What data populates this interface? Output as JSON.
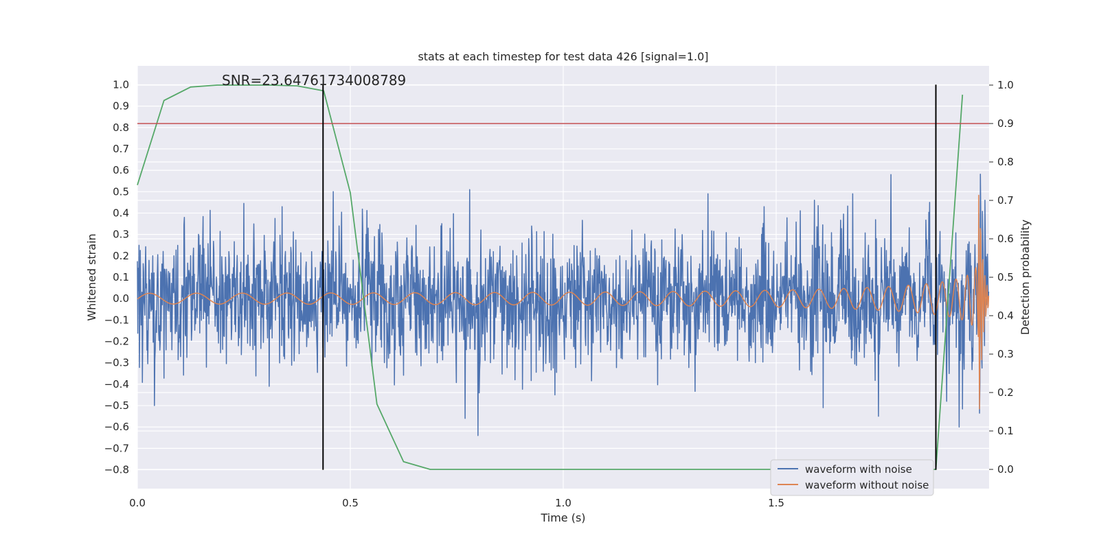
{
  "chart_data": {
    "type": "line",
    "title": "stats at each timestep for test data 426 [signal=1.0]",
    "annotation": "SNR=23.64761734008789",
    "xlabel": "Time (s)",
    "ylabel": "Whitened strain",
    "y2label": "Detection probability",
    "xlim": [
      0.0,
      2.0
    ],
    "ylim": [
      -0.888,
      1.088
    ],
    "y2lim": [
      -0.05,
      1.05
    ],
    "x_ticks": [
      0.0,
      0.5,
      1.0,
      1.5
    ],
    "x_tick_labels": [
      "0.0",
      "0.5",
      "1.0",
      "1.5"
    ],
    "y_ticks": [
      -0.8,
      -0.7,
      -0.6,
      -0.5,
      -0.4,
      -0.3,
      -0.2,
      -0.1,
      0.0,
      0.1,
      0.2,
      0.3,
      0.4,
      0.5,
      0.6,
      0.7,
      0.8,
      0.9,
      1.0
    ],
    "y_tick_labels": [
      "−0.8",
      "−0.7",
      "−0.6",
      "−0.5",
      "−0.4",
      "−0.3",
      "−0.2",
      "−0.1",
      "0.0",
      "0.1",
      "0.2",
      "0.3",
      "0.4",
      "0.5",
      "0.6",
      "0.7",
      "0.8",
      "0.9",
      "1.0"
    ],
    "y2_ticks": [
      0.0,
      0.1,
      0.2,
      0.3,
      0.4,
      0.5,
      0.6,
      0.7,
      0.8,
      0.9,
      1.0
    ],
    "y2_tick_labels": [
      "0.0",
      "0.1",
      "0.2",
      "0.3",
      "0.4",
      "0.5",
      "0.6",
      "0.7",
      "0.8",
      "0.9",
      "1.0"
    ],
    "grid": true,
    "legend_position": "lower-right",
    "threshold_line": {
      "axis": "right",
      "value": 0.9,
      "color": "#c44e52"
    },
    "vertical_markers": {
      "x": [
        0.436,
        1.875
      ],
      "y_range": [
        -0.8,
        1.0
      ],
      "color": "#000000"
    },
    "series": [
      {
        "name": "waveform with noise",
        "color": "#4c72b0",
        "axis": "left",
        "generated": true,
        "duration_s": 2.0,
        "sample_rate": 1024,
        "noise_std": 0.15,
        "noise_peaks": [
          [
            0.04,
            -0.5
          ],
          [
            0.11,
            0.38
          ],
          [
            0.31,
            -0.41
          ],
          [
            0.34,
            0.43
          ],
          [
            0.46,
            0.5
          ],
          [
            0.77,
            -0.56
          ],
          [
            0.8,
            -0.64
          ],
          [
            0.78,
            0.51
          ],
          [
            0.98,
            -0.45
          ],
          [
            1.34,
            0.49
          ],
          [
            1.59,
            0.46
          ],
          [
            1.61,
            -0.51
          ],
          [
            1.74,
            -0.55
          ],
          [
            1.68,
            0.49
          ],
          [
            1.77,
            0.58
          ],
          [
            1.86,
            0.45
          ],
          [
            1.9,
            -0.48
          ],
          [
            1.93,
            -0.6
          ],
          [
            1.99,
            0.46
          ]
        ]
      },
      {
        "name": "waveform without noise",
        "color": "#dd8452",
        "axis": "left",
        "generated": true,
        "chirp": {
          "t_merge": 1.975,
          "f0_hz": 9,
          "tau_s": 1.95,
          "amp_start": 0.025,
          "amp_end": 0.7
        }
      },
      {
        "name": "",
        "color": "#55a868",
        "axis": "right",
        "x": [
          0.0,
          0.0625,
          0.125,
          0.1875,
          0.25,
          0.3125,
          0.375,
          0.4375,
          0.5,
          0.5625,
          0.625,
          0.6875,
          0.75,
          0.8125,
          0.875,
          0.9375,
          1.0,
          1.0625,
          1.125,
          1.1875,
          1.25,
          1.3125,
          1.375,
          1.4375,
          1.5,
          1.5625,
          1.625,
          1.6875,
          1.75,
          1.8125,
          1.875,
          1.9375
        ],
        "values": [
          0.74,
          0.96,
          0.995,
          1.0,
          1.0,
          1.0,
          0.998,
          0.985,
          0.72,
          0.17,
          0.02,
          0.0,
          0.0,
          0.0,
          0.0,
          0.0,
          0.0,
          0.0,
          0.0,
          0.0,
          0.0,
          0.0,
          0.0,
          0.0,
          0.0,
          0.0,
          0.0,
          0.0,
          0.0,
          0.0,
          0.0,
          0.975
        ]
      }
    ],
    "legend": [
      {
        "label": "waveform with noise",
        "color": "#4c72b0"
      },
      {
        "label": "waveform without noise",
        "color": "#dd8452"
      }
    ]
  }
}
